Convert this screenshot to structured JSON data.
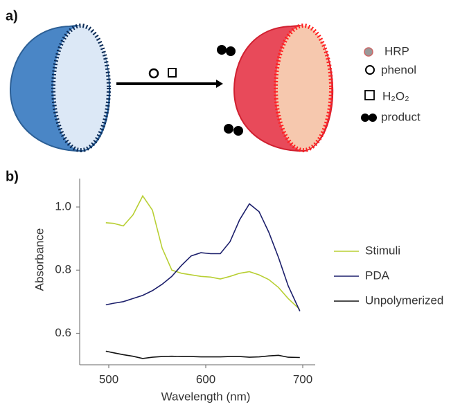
{
  "panel_a": {
    "label": "a)",
    "legend": [
      "HRP",
      "phenol",
      "H₂O₂",
      "product"
    ]
  },
  "panel_b": {
    "label": "b)"
  },
  "chart_data": {
    "type": "line",
    "xlabel": "Wavelength (nm)",
    "ylabel": "Absorbance",
    "x": [
      497,
      505,
      515,
      525,
      535,
      545,
      555,
      565,
      575,
      585,
      595,
      605,
      615,
      625,
      635,
      645,
      655,
      665,
      675,
      685,
      697
    ],
    "series": [
      {
        "name": "Stimuli",
        "color": "#b8cf33",
        "values": [
          0.95,
          0.948,
          0.94,
          0.975,
          1.035,
          0.99,
          0.87,
          0.8,
          0.79,
          0.785,
          0.78,
          0.778,
          0.772,
          0.78,
          0.79,
          0.795,
          0.785,
          0.77,
          0.745,
          0.71,
          0.675
        ]
      },
      {
        "name": "PDA",
        "color": "#1c1f6b",
        "values": [
          0.69,
          0.695,
          0.7,
          0.71,
          0.72,
          0.735,
          0.755,
          0.78,
          0.815,
          0.845,
          0.855,
          0.852,
          0.852,
          0.89,
          0.96,
          1.01,
          0.985,
          0.92,
          0.84,
          0.75,
          0.67
        ]
      },
      {
        "name": "Unpolymerized",
        "color": "#111111",
        "values": [
          0.543,
          0.538,
          0.532,
          0.527,
          0.52,
          0.524,
          0.526,
          0.527,
          0.526,
          0.526,
          0.525,
          0.525,
          0.525,
          0.526,
          0.526,
          0.524,
          0.525,
          0.528,
          0.53,
          0.524,
          0.523
        ]
      }
    ],
    "xlim": [
      470,
      710
    ],
    "ylim": [
      0.5,
      1.09
    ],
    "xticks": [
      500,
      600,
      700
    ],
    "yticks": [
      0.6,
      0.8,
      {
        "value": 1.0,
        "label": "1.0"
      }
    ],
    "legend": "right"
  }
}
